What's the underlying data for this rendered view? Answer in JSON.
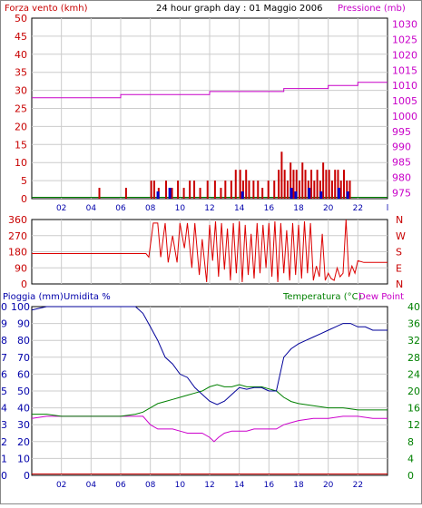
{
  "colors": {
    "wind": "#c80000",
    "gust_blue": "#0000cc",
    "pressure": "#c800c8",
    "wind_dir": "#dd0000",
    "temperature": "#008000",
    "humidity": "#000099",
    "dew_point": "#cc00cc",
    "rain": "#c80000",
    "tick_left": "#0000aa",
    "grid": "#cccccc"
  },
  "chart_data": [
    {
      "type": "bar",
      "title": "24 hour graph day : 01 Maggio 2006",
      "left_label": "Forza vento (kmh)",
      "right_label": "Pressione (mb)",
      "y_ticks": [
        "50",
        "45",
        "40",
        "35",
        "30",
        "25",
        "20",
        "15",
        "10",
        "5",
        "0"
      ],
      "y2_ticks": [
        "1030",
        "1025",
        "1020",
        "1015",
        "1010",
        "1005",
        "1000",
        "995",
        "990",
        "985",
        "980",
        "975"
      ],
      "x_ticks": [
        "02",
        "04",
        "06",
        "08",
        "10",
        "12",
        "14",
        "16",
        "18",
        "20",
        "22",
        "l"
      ],
      "ylim": [
        0,
        50
      ],
      "y2lim": [
        973,
        1032
      ],
      "pressure_series": {
        "x": [
          0,
          6,
          6,
          12,
          12,
          17,
          17,
          20,
          20,
          22,
          22,
          24
        ],
        "y": [
          1006,
          1006,
          1007,
          1007,
          1008,
          1008,
          1009,
          1009,
          1010,
          1010,
          1011,
          1011
        ]
      },
      "wind_bars": {
        "x": [
          4.5,
          6.3,
          8.0,
          8.2,
          8.5,
          9.0,
          9.4,
          9.8,
          10.2,
          10.6,
          10.9,
          11.3,
          11.8,
          12.3,
          12.7,
          13.0,
          13.4,
          13.7,
          14.0,
          14.2,
          14.4,
          14.6,
          14.9,
          15.2,
          15.5,
          15.9,
          16.3,
          16.6,
          16.8,
          17.0,
          17.2,
          17.4,
          17.6,
          17.8,
          18.0,
          18.2,
          18.4,
          18.6,
          18.8,
          19.0,
          19.2,
          19.4,
          19.6,
          19.8,
          20.0,
          20.2,
          20.4,
          20.6,
          20.8,
          21.0,
          21.2,
          21.4
        ],
        "y": [
          3,
          3,
          5,
          5,
          3,
          5,
          3,
          5,
          3,
          5,
          5,
          3,
          5,
          5,
          3,
          5,
          5,
          8,
          8,
          5,
          8,
          5,
          5,
          5,
          3,
          5,
          5,
          8,
          13,
          8,
          5,
          10,
          8,
          8,
          5,
          10,
          8,
          5,
          8,
          5,
          8,
          5,
          10,
          8,
          8,
          5,
          8,
          8,
          5,
          8,
          5,
          5
        ]
      },
      "gust_bars": {
        "x": [
          8.3,
          9.1,
          14.0,
          17.3,
          17.6,
          18.5,
          19.3,
          20.5,
          21.1
        ],
        "y": [
          2,
          3,
          2,
          3,
          2,
          3,
          2,
          3,
          2
        ]
      },
      "green_baseline": 0.5
    },
    {
      "type": "line",
      "right_letters": [
        "N",
        "W",
        "S",
        "E",
        "N"
      ],
      "y_ticks": [
        "360",
        "270",
        "180",
        "90",
        "0"
      ],
      "ylim": [
        0,
        360
      ],
      "series": {
        "x": [
          0,
          7.7,
          7.9,
          8.2,
          8.5,
          8.7,
          9.0,
          9.2,
          9.5,
          9.8,
          10.0,
          10.3,
          10.5,
          10.8,
          11.0,
          11.3,
          11.5,
          11.8,
          12.0,
          12.2,
          12.4,
          12.6,
          12.8,
          13.0,
          13.2,
          13.4,
          13.6,
          13.8,
          14.0,
          14.2,
          14.4,
          14.6,
          14.8,
          15.0,
          15.2,
          15.4,
          15.6,
          15.8,
          16.0,
          16.2,
          16.4,
          16.6,
          16.8,
          17.0,
          17.2,
          17.4,
          17.6,
          17.8,
          18.0,
          18.2,
          18.4,
          18.6,
          18.8,
          19.0,
          19.2,
          19.4,
          19.6,
          19.8,
          20.0,
          20.2,
          20.4,
          20.6,
          20.8,
          21.0,
          21.2,
          21.4,
          21.6,
          21.8,
          22.0,
          22.4,
          24
        ],
        "y": [
          170,
          170,
          150,
          340,
          340,
          150,
          340,
          120,
          270,
          120,
          340,
          200,
          340,
          90,
          340,
          50,
          250,
          10,
          330,
          130,
          350,
          40,
          340,
          80,
          310,
          20,
          340,
          60,
          350,
          10,
          330,
          50,
          280,
          30,
          340,
          60,
          330,
          90,
          340,
          40,
          350,
          10,
          340,
          60,
          300,
          20,
          340,
          50,
          330,
          30,
          350,
          60,
          340,
          20,
          100,
          40,
          280,
          20,
          60,
          30,
          20,
          90,
          40,
          60,
          360,
          40,
          100,
          60,
          130,
          120,
          120
        ]
      }
    },
    {
      "type": "line",
      "left_label_1": "Pioggia (mm)",
      "left_label_2": "Umidita %",
      "right_label_1": "Temperatura (°C)",
      "right_label_2": "Dew Point",
      "y_rain_ticks": [
        "10",
        "9",
        "8",
        "7",
        "6",
        "5",
        "4",
        "3",
        "2",
        "1",
        "0"
      ],
      "y_humidity_ticks": [
        "100",
        "90",
        "80",
        "70",
        "60",
        "50",
        "40",
        "30",
        "20",
        "10",
        "0"
      ],
      "y_temp_ticks": [
        "40",
        "36",
        "32",
        "28",
        "24",
        "20",
        "16",
        "12",
        "8",
        "4",
        "0"
      ],
      "ylim_humidity": [
        0,
        100
      ],
      "ylim_temp": [
        0,
        40
      ],
      "humidity": {
        "x": [
          0,
          1,
          2,
          3,
          4,
          5,
          6,
          7,
          7.5,
          8.0,
          8.5,
          9.0,
          9.5,
          10.0,
          10.5,
          11.0,
          11.5,
          12.0,
          12.5,
          13.0,
          13.5,
          14.0,
          14.5,
          15.0,
          15.5,
          16.0,
          16.5,
          17.0,
          17.5,
          18.0,
          18.5,
          19.0,
          19.5,
          20.0,
          20.5,
          21.0,
          21.5,
          22.0,
          22.5,
          23.0,
          24
        ],
        "y": [
          98,
          100,
          100,
          100,
          100,
          100,
          100,
          100,
          96,
          88,
          80,
          70,
          66,
          60,
          58,
          52,
          48,
          44,
          42,
          44,
          48,
          52,
          51,
          52,
          52,
          50,
          50,
          70,
          75,
          78,
          80,
          82,
          84,
          86,
          88,
          90,
          90,
          88,
          88,
          86,
          86
        ]
      },
      "temperature": {
        "x": [
          0,
          1,
          2,
          3,
          4,
          5,
          6,
          7,
          7.5,
          8.0,
          8.5,
          9.0,
          9.5,
          10.0,
          10.5,
          11.0,
          11.5,
          12.0,
          12.5,
          13.0,
          13.5,
          14.0,
          14.5,
          15.0,
          15.5,
          16.0,
          16.5,
          17.0,
          17.5,
          18.0,
          19.0,
          20.0,
          21.0,
          22.0,
          23.0,
          24
        ],
        "y": [
          14.5,
          14.5,
          14,
          14,
          14,
          14,
          14,
          14.5,
          15,
          16,
          17,
          17.5,
          18,
          18.5,
          19,
          19.5,
          20,
          21,
          21.5,
          21,
          21,
          21.5,
          21,
          21,
          21,
          20.5,
          20,
          18.5,
          17.5,
          17,
          16.5,
          16,
          16,
          15.5,
          15.5,
          15.5
        ]
      },
      "dew_point": {
        "x": [
          0,
          1,
          2,
          3,
          4,
          5,
          6,
          7,
          7.5,
          8.0,
          8.5,
          9.0,
          9.5,
          10.0,
          10.5,
          11.0,
          11.5,
          12.0,
          12.3,
          12.6,
          13.0,
          13.5,
          14.0,
          14.5,
          15.0,
          15.5,
          16.0,
          16.5,
          17.0,
          17.5,
          18.0,
          19.0,
          20.0,
          21.0,
          22.0,
          23.0,
          24
        ],
        "y": [
          13.5,
          14,
          14,
          14,
          14,
          14,
          14,
          14,
          14,
          12,
          11,
          11,
          11,
          10.5,
          10,
          10,
          10,
          9,
          8,
          9,
          10,
          10.5,
          10.5,
          10.5,
          11,
          11,
          11,
          11,
          12,
          12.5,
          13,
          13.5,
          13.5,
          14,
          14,
          13.5,
          13.5
        ]
      },
      "x_ticks": [
        "02",
        "04",
        "06",
        "08",
        "10",
        "12",
        "14",
        "16",
        "18",
        "20",
        "22"
      ]
    }
  ]
}
